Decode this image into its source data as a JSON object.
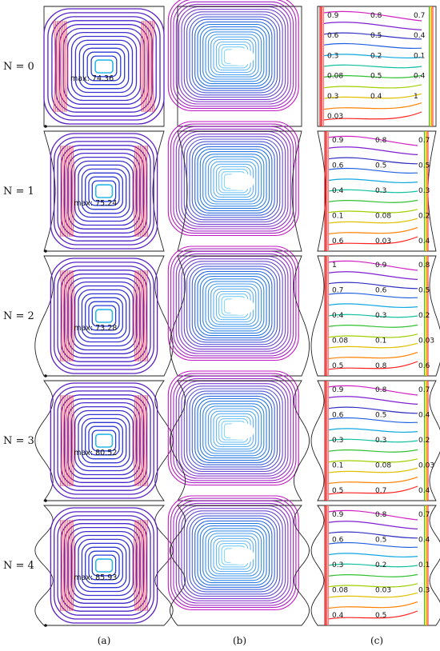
{
  "rows": [
    {
      "label": "N = 0",
      "max_label": "max: 74.36",
      "iso_labels": [
        "0.9",
        "0.8",
        "0.7",
        "0.6",
        "0.5",
        "0.4",
        "0.3",
        "0.2",
        "0.1",
        "0.08",
        "0.5",
        "0.4",
        "0.3",
        "0.4",
        "1",
        "0.03"
      ]
    },
    {
      "label": "N = 1",
      "max_label": "max: 75.24",
      "iso_labels": [
        "0.9",
        "0.8",
        "0.7",
        "0.6",
        "0.5",
        "0.5",
        "0.4",
        "0.3",
        "0.3",
        "0.1",
        "0.08",
        "0.2",
        "0.6",
        "0.03",
        "0.4"
      ]
    },
    {
      "label": "N = 2",
      "max_label": "max: 73.28",
      "iso_labels": [
        "1",
        "0.9",
        "0.8",
        "0.7",
        "0.6",
        "0.5",
        "0.4",
        "0.3",
        "0.2",
        "0.08",
        "0.1",
        "0.03",
        "0.5",
        "0.8",
        "0.6"
      ]
    },
    {
      "label": "N = 3",
      "max_label": "max: 80.52",
      "iso_labels": [
        "0.9",
        "0.8",
        "0.7",
        "0.6",
        "0.5",
        "0.4",
        "0.3",
        "0.3",
        "0.2",
        "0.1",
        "0.08",
        "0.03",
        "0.5",
        "0.7",
        "0.4"
      ]
    },
    {
      "label": "N = 4",
      "max_label": "max: 85.93",
      "iso_labels": [
        "0.9",
        "0.8",
        "0.7",
        "0.6",
        "0.5",
        "0.4",
        "0.3",
        "0.2",
        "0.1",
        "0.08",
        "0.03",
        "0.3",
        "0.4",
        "0.5"
      ]
    }
  ],
  "column_labels": [
    "(a)",
    "(b)",
    "(c)"
  ]
}
